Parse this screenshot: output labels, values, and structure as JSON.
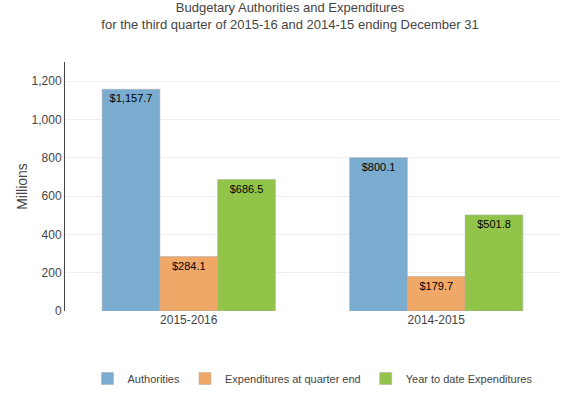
{
  "chart_data": {
    "type": "bar",
    "title": "Budgetary Authorities and Expenditures",
    "subtitle": "for the third quarter of 2015-16 and 2014-15 ending December 31",
    "y_label": "Millions",
    "categories": [
      "2015-2016",
      "2014-2015"
    ],
    "series": [
      {
        "name": "Authorities",
        "color": "#7aaccf",
        "values": [
          1157.7,
          800.1
        ],
        "value_labels": [
          "$1,157.7",
          "$800.1"
        ]
      },
      {
        "name": "Expenditures at quarter end",
        "color": "#f0a868",
        "values": [
          284.1,
          179.7
        ],
        "value_labels": [
          "$284.1",
          "$179.7"
        ]
      },
      {
        "name": "Year to date Expenditures",
        "color": "#92c44a",
        "values": [
          686.5,
          501.8
        ],
        "value_labels": [
          "$686.5",
          "$501.8"
        ]
      }
    ],
    "ylim": [
      0,
      1300
    ],
    "yticks": [
      0,
      200,
      400,
      600,
      800,
      {
        "value": 1000,
        "label": "1,000"
      },
      {
        "value": 1200,
        "label": "1,200"
      }
    ],
    "grid": true,
    "legend": "bottom",
    "data_labels": true
  }
}
